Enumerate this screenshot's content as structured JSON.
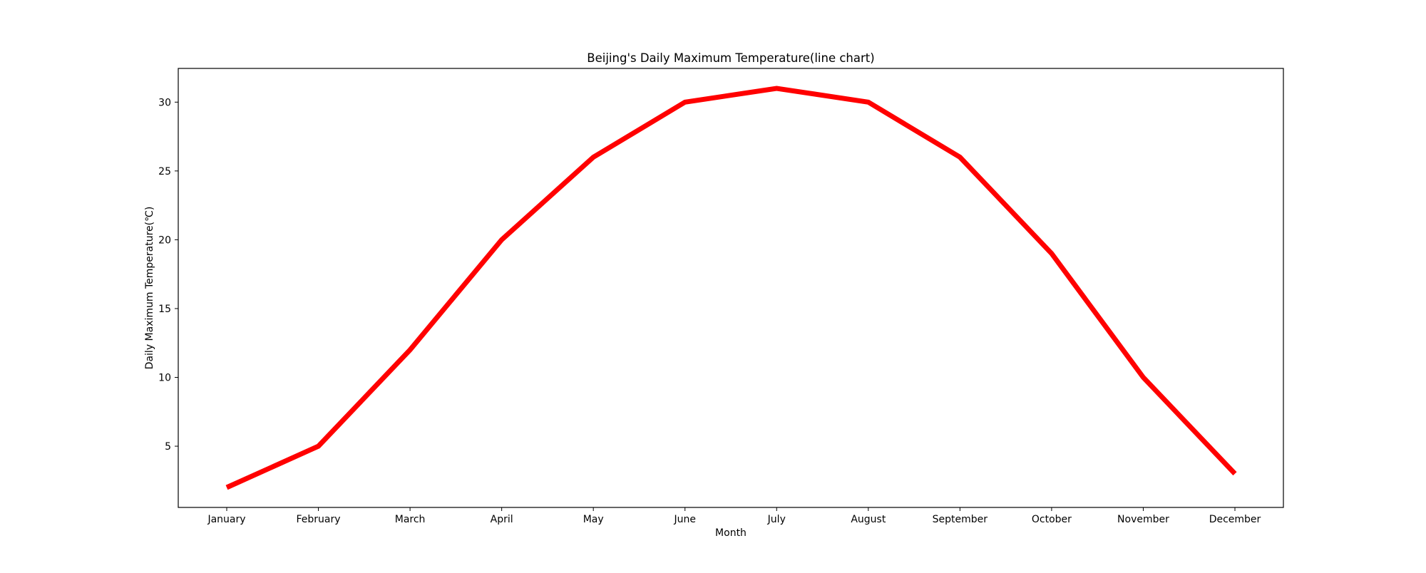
{
  "chart_data": {
    "type": "line",
    "title": "Beijing's Daily Maximum Temperature(line chart)",
    "xlabel": "Month",
    "ylabel": "Daily Maximum Temperature(℃)",
    "categories": [
      "January",
      "February",
      "March",
      "April",
      "May",
      "June",
      "July",
      "August",
      "September",
      "October",
      "November",
      "December"
    ],
    "series": [
      {
        "values": [
          2,
          5,
          12,
          20,
          26,
          30,
          31,
          30,
          26,
          19,
          10,
          3
        ],
        "color": "#ff0000"
      }
    ],
    "ylim": [
      0.55,
      32.45
    ],
    "yticks": [
      5,
      10,
      15,
      20,
      25,
      30
    ],
    "grid": false,
    "legend": "none"
  }
}
